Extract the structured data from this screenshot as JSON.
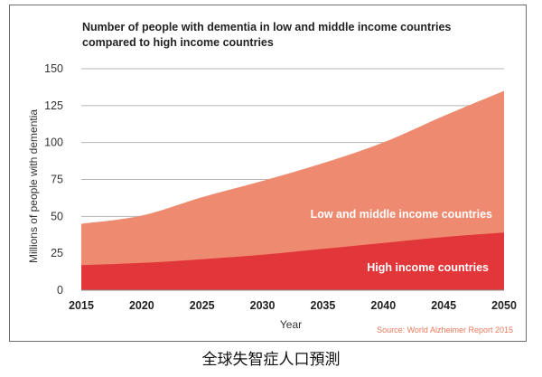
{
  "chart_data": {
    "type": "area",
    "stacked": true,
    "title_lines": [
      "Number of people with dementia in low and middle income countries",
      "compared to high income countries"
    ],
    "xlabel": "Year",
    "ylabel": "Millions of people with dementia",
    "x": [
      2015,
      2020,
      2025,
      2030,
      2035,
      2040,
      2045,
      2050
    ],
    "x_ticks": [
      "2015",
      "2020",
      "2025",
      "2030",
      "2035",
      "2040",
      "2045",
      "2050"
    ],
    "ylim": [
      0,
      150
    ],
    "y_ticks": [
      "0",
      "25",
      "50",
      "75",
      "100",
      "125",
      "150"
    ],
    "grid": true,
    "series": [
      {
        "name": "High income countries",
        "values": [
          17,
          18.5,
          21,
          24,
          28,
          32,
          36,
          39
        ],
        "color": "#e2373a"
      },
      {
        "name": "Low and middle income countries",
        "values": [
          28,
          32,
          42,
          50,
          58,
          68,
          82,
          96
        ],
        "color": "#ee8a6f"
      }
    ],
    "total": [
      45,
      50.5,
      63,
      74,
      86,
      100,
      118,
      135
    ],
    "source": "Source: World Alzheimer Report 2015"
  },
  "caption": "全球失智症人口預測"
}
